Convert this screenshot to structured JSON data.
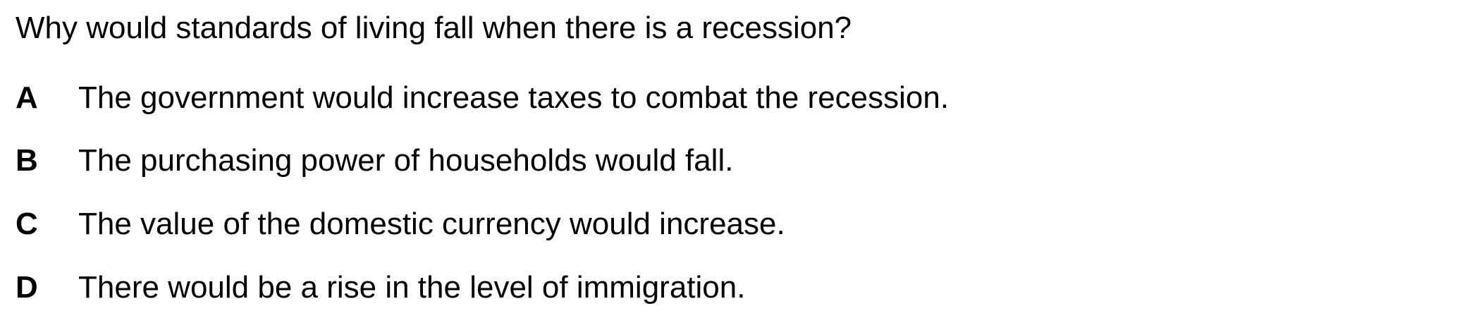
{
  "question": "Why would standards of living fall when there is a recession?",
  "options": [
    {
      "letter": "A",
      "text": "The government would increase taxes to combat the recession."
    },
    {
      "letter": "B",
      "text": "The purchasing power of households would fall."
    },
    {
      "letter": "C",
      "text": "The value of the domestic currency would increase."
    },
    {
      "letter": "D",
      "text": "There would be a rise in the level of immigration."
    }
  ]
}
